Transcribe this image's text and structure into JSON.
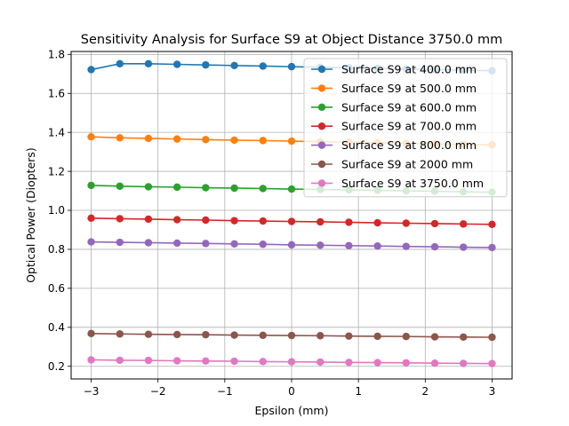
{
  "chart_data": {
    "type": "line",
    "title": "Sensitivity Analysis for Surface S9 at Object Distance 3750.0 mm",
    "xlabel": "Epsilon (mm)",
    "ylabel": "Optical Power (Diopters)",
    "xlim": [
      -3.3,
      3.3
    ],
    "ylim": [
      0.135,
      1.815
    ],
    "xticks": [
      -3,
      -2,
      -1,
      0,
      1,
      2,
      3
    ],
    "xtick_labels": [
      "−3",
      "−2",
      "−1",
      "0",
      "1",
      "2",
      "3"
    ],
    "yticks": [
      0.2,
      0.4,
      0.6,
      0.8,
      1.0,
      1.2,
      1.4,
      1.6,
      1.8
    ],
    "ytick_labels": [
      "0.2",
      "0.4",
      "0.6",
      "0.8",
      "1.0",
      "1.2",
      "1.4",
      "1.6",
      "1.8"
    ],
    "grid": true,
    "legend_position": "top-right",
    "x": [
      -3.0,
      -2.571,
      -2.143,
      -1.714,
      -1.286,
      -0.857,
      -0.429,
      0.0,
      0.429,
      0.857,
      1.286,
      1.714,
      2.143,
      2.571,
      3.0
    ],
    "series": [
      {
        "name": "Surface S9 at 400.0 mm",
        "color": "#1f77b4",
        "values": [
          1.722,
          1.752,
          1.752,
          1.749,
          1.746,
          1.743,
          1.74,
          1.737,
          1.734,
          1.731,
          1.728,
          1.725,
          1.722,
          1.719,
          1.716
        ]
      },
      {
        "name": "Surface S9 at 500.0 mm",
        "color": "#ff7f0e",
        "values": [
          1.377,
          1.372,
          1.369,
          1.366,
          1.363,
          1.36,
          1.358,
          1.355,
          1.352,
          1.35,
          1.347,
          1.344,
          1.341,
          1.338,
          1.336
        ]
      },
      {
        "name": "Surface S9 at 600.0 mm",
        "color": "#2ca02c",
        "values": [
          1.128,
          1.124,
          1.121,
          1.119,
          1.116,
          1.114,
          1.112,
          1.109,
          1.107,
          1.105,
          1.103,
          1.1,
          1.098,
          1.095,
          1.093
        ]
      },
      {
        "name": "Surface S9 at 700.0 mm",
        "color": "#d62728",
        "values": [
          0.96,
          0.957,
          0.955,
          0.952,
          0.95,
          0.947,
          0.945,
          0.943,
          0.941,
          0.939,
          0.936,
          0.934,
          0.932,
          0.93,
          0.928
        ]
      },
      {
        "name": "Surface S9 at 800.0 mm",
        "color": "#9467bd",
        "values": [
          0.838,
          0.836,
          0.834,
          0.832,
          0.83,
          0.828,
          0.826,
          0.823,
          0.821,
          0.819,
          0.817,
          0.815,
          0.813,
          0.811,
          0.809
        ]
      },
      {
        "name": "Surface S9 at 2000 mm",
        "color": "#8c564b",
        "values": [
          0.368,
          0.366,
          0.364,
          0.363,
          0.362,
          0.36,
          0.359,
          0.358,
          0.357,
          0.355,
          0.354,
          0.353,
          0.351,
          0.35,
          0.349
        ]
      },
      {
        "name": "Surface S9 at 3750.0 mm",
        "color": "#e377c2",
        "values": [
          0.233,
          0.231,
          0.23,
          0.228,
          0.227,
          0.226,
          0.224,
          0.223,
          0.222,
          0.22,
          0.219,
          0.218,
          0.216,
          0.215,
          0.214
        ]
      }
    ]
  }
}
